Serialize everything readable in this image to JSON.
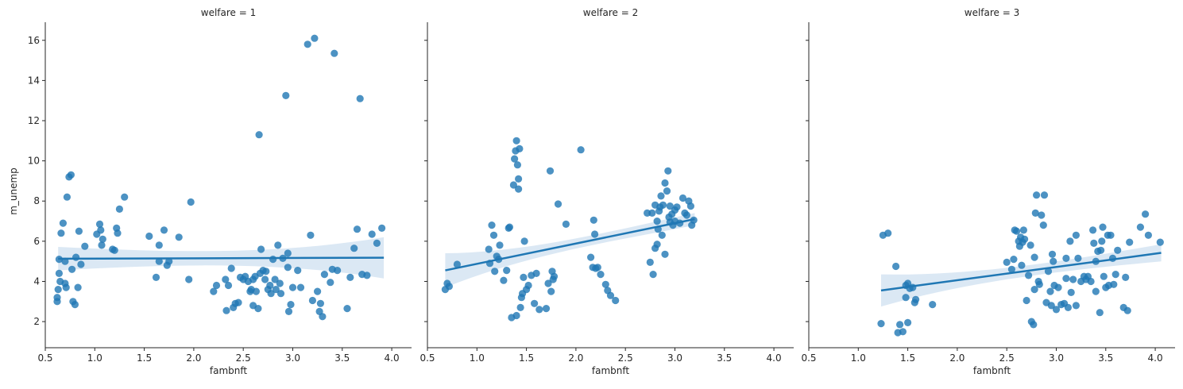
{
  "chart_data": {
    "type": "scatter",
    "ylabel": "m_unemp",
    "xlabel": "fambnft",
    "xlim": [
      0.5,
      4.2
    ],
    "ylim": [
      0.7,
      16.9
    ],
    "xticks": [
      0.5,
      1.0,
      1.5,
      2.0,
      2.5,
      3.0,
      3.5,
      4.0
    ],
    "xtick_labels": [
      "0.5",
      "1.0",
      "1.5",
      "2.0",
      "2.5",
      "3.0",
      "3.5",
      "4.0"
    ],
    "yticks": [
      2,
      4,
      6,
      8,
      10,
      12,
      14,
      16
    ],
    "ytick_labels": [
      "2",
      "4",
      "6",
      "8",
      "10",
      "12",
      "14",
      "16"
    ],
    "grid": false,
    "point_color": "#1f77b4",
    "band_color": "#cfe0f0",
    "panels": [
      {
        "title": "welfare = 1",
        "regression": {
          "x": [
            0.63,
            3.92
          ],
          "y": [
            5.13,
            5.18
          ],
          "ci_lower": [
            4.55,
            4.15
          ],
          "ci_upper": [
            5.72,
            6.2
          ]
        },
        "points": [
          [
            0.62,
            3.2
          ],
          [
            0.62,
            3.0
          ],
          [
            0.63,
            3.6
          ],
          [
            0.64,
            4.4
          ],
          [
            0.65,
            4.0
          ],
          [
            0.64,
            5.1
          ],
          [
            0.66,
            6.4
          ],
          [
            0.68,
            6.9
          ],
          [
            0.7,
            5.0
          ],
          [
            0.7,
            3.9
          ],
          [
            0.71,
            3.7
          ],
          [
            0.72,
            8.2
          ],
          [
            0.74,
            9.2
          ],
          [
            0.76,
            9.3
          ],
          [
            0.77,
            4.6
          ],
          [
            0.78,
            3.0
          ],
          [
            0.8,
            2.85
          ],
          [
            0.81,
            5.2
          ],
          [
            0.83,
            3.7
          ],
          [
            0.84,
            6.5
          ],
          [
            0.86,
            4.85
          ],
          [
            0.9,
            5.75
          ],
          [
            1.02,
            6.35
          ],
          [
            1.05,
            6.85
          ],
          [
            1.06,
            6.55
          ],
          [
            1.07,
            5.8
          ],
          [
            1.08,
            6.1
          ],
          [
            1.18,
            5.6
          ],
          [
            1.2,
            5.55
          ],
          [
            1.22,
            6.65
          ],
          [
            1.23,
            6.4
          ],
          [
            1.25,
            7.6
          ],
          [
            1.3,
            8.2
          ],
          [
            1.55,
            6.25
          ],
          [
            1.62,
            4.2
          ],
          [
            1.65,
            5.0
          ],
          [
            1.65,
            5.8
          ],
          [
            1.7,
            6.55
          ],
          [
            1.73,
            4.8
          ],
          [
            1.75,
            5.0
          ],
          [
            1.85,
            6.2
          ],
          [
            1.95,
            4.1
          ],
          [
            1.97,
            7.95
          ],
          [
            2.2,
            3.5
          ],
          [
            2.23,
            3.8
          ],
          [
            2.32,
            4.1
          ],
          [
            2.33,
            2.55
          ],
          [
            2.35,
            3.8
          ],
          [
            2.38,
            4.65
          ],
          [
            2.4,
            2.7
          ],
          [
            2.42,
            2.9
          ],
          [
            2.45,
            2.95
          ],
          [
            2.47,
            4.2
          ],
          [
            2.5,
            4.1
          ],
          [
            2.52,
            4.25
          ],
          [
            2.55,
            4.0
          ],
          [
            2.57,
            3.5
          ],
          [
            2.58,
            3.6
          ],
          [
            2.6,
            2.8
          ],
          [
            2.6,
            4.1
          ],
          [
            2.62,
            4.25
          ],
          [
            2.63,
            3.5
          ],
          [
            2.65,
            2.65
          ],
          [
            2.66,
            11.3
          ],
          [
            2.67,
            4.4
          ],
          [
            2.68,
            5.6
          ],
          [
            2.7,
            4.55
          ],
          [
            2.72,
            4.1
          ],
          [
            2.73,
            4.5
          ],
          [
            2.75,
            3.6
          ],
          [
            2.77,
            3.8
          ],
          [
            2.78,
            3.4
          ],
          [
            2.8,
            5.1
          ],
          [
            2.82,
            4.1
          ],
          [
            2.83,
            3.6
          ],
          [
            2.85,
            5.8
          ],
          [
            2.87,
            3.9
          ],
          [
            2.88,
            3.4
          ],
          [
            2.9,
            5.15
          ],
          [
            2.93,
            13.25
          ],
          [
            2.95,
            5.4
          ],
          [
            2.96,
            2.5
          ],
          [
            2.98,
            2.85
          ],
          [
            3.0,
            3.7
          ],
          [
            3.08,
            3.7
          ],
          [
            3.15,
            15.8
          ],
          [
            3.18,
            6.3
          ],
          [
            3.2,
            3.05
          ],
          [
            3.22,
            16.1
          ],
          [
            3.25,
            3.5
          ],
          [
            3.27,
            2.5
          ],
          [
            3.3,
            2.25
          ],
          [
            3.32,
            4.35
          ],
          [
            3.38,
            3.95
          ],
          [
            3.42,
            15.35
          ],
          [
            3.45,
            4.55
          ],
          [
            3.55,
            2.65
          ],
          [
            3.58,
            4.2
          ],
          [
            3.62,
            5.65
          ],
          [
            3.65,
            6.6
          ],
          [
            3.68,
            13.1
          ],
          [
            3.7,
            4.35
          ],
          [
            3.75,
            4.3
          ],
          [
            3.8,
            6.35
          ],
          [
            3.85,
            5.9
          ],
          [
            3.9,
            6.65
          ],
          [
            3.28,
            2.9
          ],
          [
            3.05,
            4.55
          ],
          [
            2.95,
            4.7
          ],
          [
            3.4,
            4.6
          ]
        ]
      },
      {
        "title": "welfare = 2",
        "regression": {
          "x": [
            0.68,
            3.2
          ],
          "y": [
            4.55,
            7.1
          ],
          "ci_lower": [
            3.7,
            6.8
          ],
          "ci_upper": [
            5.4,
            7.4
          ]
        },
        "points": [
          [
            0.68,
            3.6
          ],
          [
            0.7,
            3.9
          ],
          [
            0.72,
            3.75
          ],
          [
            0.8,
            4.85
          ],
          [
            1.12,
            5.6
          ],
          [
            1.13,
            4.9
          ],
          [
            1.15,
            6.8
          ],
          [
            1.17,
            6.3
          ],
          [
            1.18,
            4.5
          ],
          [
            1.2,
            5.25
          ],
          [
            1.22,
            5.1
          ],
          [
            1.23,
            5.8
          ],
          [
            1.27,
            4.05
          ],
          [
            1.3,
            4.55
          ],
          [
            1.32,
            6.65
          ],
          [
            1.33,
            6.7
          ],
          [
            1.35,
            2.2
          ],
          [
            1.37,
            8.8
          ],
          [
            1.38,
            10.1
          ],
          [
            1.39,
            10.5
          ],
          [
            1.4,
            11.0
          ],
          [
            1.4,
            2.3
          ],
          [
            1.41,
            9.8
          ],
          [
            1.42,
            9.1
          ],
          [
            1.42,
            8.6
          ],
          [
            1.43,
            10.6
          ],
          [
            1.44,
            2.7
          ],
          [
            1.45,
            3.2
          ],
          [
            1.46,
            3.4
          ],
          [
            1.47,
            4.2
          ],
          [
            1.48,
            6.0
          ],
          [
            1.5,
            3.6
          ],
          [
            1.52,
            3.8
          ],
          [
            1.55,
            4.3
          ],
          [
            1.58,
            2.9
          ],
          [
            1.6,
            4.4
          ],
          [
            1.63,
            2.6
          ],
          [
            1.7,
            2.65
          ],
          [
            1.72,
            3.9
          ],
          [
            1.74,
            9.5
          ],
          [
            1.75,
            3.5
          ],
          [
            1.76,
            4.5
          ],
          [
            1.77,
            4.1
          ],
          [
            1.78,
            4.25
          ],
          [
            1.82,
            7.85
          ],
          [
            1.9,
            6.85
          ],
          [
            2.05,
            10.55
          ],
          [
            2.15,
            5.2
          ],
          [
            2.17,
            4.7
          ],
          [
            2.18,
            7.05
          ],
          [
            2.19,
            6.35
          ],
          [
            2.2,
            4.65
          ],
          [
            2.22,
            4.7
          ],
          [
            2.25,
            4.35
          ],
          [
            2.3,
            3.85
          ],
          [
            2.32,
            3.55
          ],
          [
            2.35,
            3.3
          ],
          [
            2.4,
            3.05
          ],
          [
            2.72,
            7.4
          ],
          [
            2.75,
            4.95
          ],
          [
            2.77,
            7.4
          ],
          [
            2.78,
            4.35
          ],
          [
            2.8,
            7.8
          ],
          [
            2.82,
            7.0
          ],
          [
            2.82,
            5.85
          ],
          [
            2.83,
            6.6
          ],
          [
            2.84,
            7.5
          ],
          [
            2.85,
            7.7
          ],
          [
            2.86,
            8.25
          ],
          [
            2.87,
            6.3
          ],
          [
            2.88,
            7.8
          ],
          [
            2.9,
            5.35
          ],
          [
            2.92,
            8.5
          ],
          [
            2.93,
            9.5
          ],
          [
            2.94,
            7.2
          ],
          [
            2.95,
            6.95
          ],
          [
            2.97,
            7.35
          ],
          [
            2.98,
            6.8
          ],
          [
            3.0,
            7.0
          ],
          [
            3.02,
            7.7
          ],
          [
            3.05,
            6.9
          ],
          [
            3.08,
            8.15
          ],
          [
            3.1,
            7.4
          ],
          [
            3.12,
            7.3
          ],
          [
            3.14,
            8.0
          ],
          [
            3.16,
            7.75
          ],
          [
            3.17,
            6.8
          ],
          [
            3.19,
            7.05
          ],
          [
            2.8,
            5.65
          ],
          [
            2.9,
            8.9
          ],
          [
            2.95,
            7.75
          ],
          [
            3.0,
            7.55
          ]
        ]
      },
      {
        "title": "welfare = 3",
        "regression": {
          "x": [
            1.23,
            4.06
          ],
          "y": [
            3.55,
            5.42
          ],
          "ci_lower": [
            2.75,
            5.0
          ],
          "ci_upper": [
            4.35,
            5.85
          ]
        },
        "points": [
          [
            1.23,
            1.9
          ],
          [
            1.25,
            6.3
          ],
          [
            1.3,
            6.4
          ],
          [
            1.38,
            4.75
          ],
          [
            1.4,
            1.45
          ],
          [
            1.42,
            1.85
          ],
          [
            1.45,
            1.5
          ],
          [
            1.48,
            3.8
          ],
          [
            1.48,
            3.2
          ],
          [
            1.5,
            3.9
          ],
          [
            1.5,
            1.95
          ],
          [
            1.52,
            3.65
          ],
          [
            1.55,
            3.7
          ],
          [
            1.57,
            2.95
          ],
          [
            1.58,
            3.1
          ],
          [
            1.75,
            2.85
          ],
          [
            2.5,
            4.95
          ],
          [
            2.55,
            4.6
          ],
          [
            2.57,
            5.1
          ],
          [
            2.58,
            6.55
          ],
          [
            2.6,
            6.5
          ],
          [
            2.62,
            6.0
          ],
          [
            2.63,
            5.75
          ],
          [
            2.64,
            6.2
          ],
          [
            2.65,
            4.8
          ],
          [
            2.66,
            5.95
          ],
          [
            2.67,
            6.55
          ],
          [
            2.68,
            6.1
          ],
          [
            2.7,
            3.05
          ],
          [
            2.72,
            4.3
          ],
          [
            2.74,
            5.8
          ],
          [
            2.75,
            2.0
          ],
          [
            2.77,
            1.85
          ],
          [
            2.78,
            3.6
          ],
          [
            2.78,
            5.2
          ],
          [
            2.79,
            7.4
          ],
          [
            2.8,
            8.3
          ],
          [
            2.82,
            4.0
          ],
          [
            2.83,
            3.85
          ],
          [
            2.85,
            7.3
          ],
          [
            2.87,
            6.8
          ],
          [
            2.88,
            8.3
          ],
          [
            2.9,
            2.95
          ],
          [
            2.92,
            4.5
          ],
          [
            2.94,
            3.5
          ],
          [
            2.95,
            2.8
          ],
          [
            2.97,
            5.0
          ],
          [
            2.98,
            3.8
          ],
          [
            3.0,
            2.6
          ],
          [
            3.02,
            3.7
          ],
          [
            3.05,
            2.85
          ],
          [
            3.08,
            2.9
          ],
          [
            3.1,
            5.15
          ],
          [
            3.12,
            2.7
          ],
          [
            3.14,
            6.0
          ],
          [
            3.15,
            3.45
          ],
          [
            3.17,
            4.1
          ],
          [
            3.2,
            2.8
          ],
          [
            3.22,
            5.15
          ],
          [
            3.25,
            4.0
          ],
          [
            3.28,
            4.25
          ],
          [
            3.3,
            4.1
          ],
          [
            3.32,
            4.25
          ],
          [
            3.35,
            4.0
          ],
          [
            3.37,
            6.55
          ],
          [
            3.38,
            5.9
          ],
          [
            3.4,
            5.0
          ],
          [
            3.42,
            5.5
          ],
          [
            3.44,
            2.45
          ],
          [
            3.45,
            5.55
          ],
          [
            3.46,
            6.0
          ],
          [
            3.47,
            6.7
          ],
          [
            3.48,
            4.25
          ],
          [
            3.5,
            3.7
          ],
          [
            3.52,
            6.3
          ],
          [
            3.53,
            3.8
          ],
          [
            3.55,
            6.3
          ],
          [
            3.57,
            5.15
          ],
          [
            3.6,
            4.35
          ],
          [
            3.62,
            5.55
          ],
          [
            3.68,
            2.7
          ],
          [
            3.7,
            4.2
          ],
          [
            3.72,
            2.55
          ],
          [
            3.74,
            5.95
          ],
          [
            3.85,
            6.7
          ],
          [
            3.9,
            7.35
          ],
          [
            3.93,
            6.3
          ],
          [
            4.05,
            5.95
          ],
          [
            3.4,
            3.5
          ],
          [
            3.58,
            3.85
          ],
          [
            3.2,
            6.3
          ],
          [
            3.1,
            4.15
          ],
          [
            2.96,
            5.35
          ]
        ]
      }
    ]
  }
}
